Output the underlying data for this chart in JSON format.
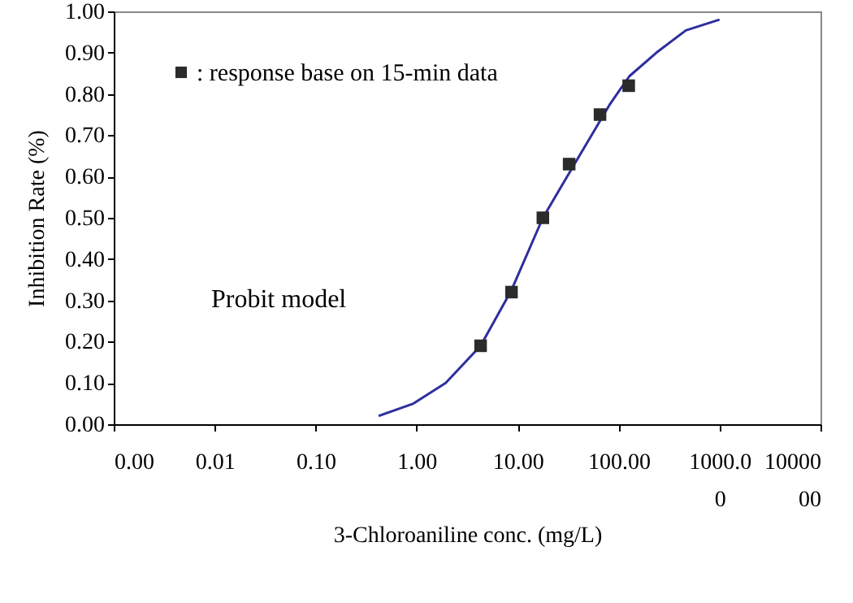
{
  "chart_data": {
    "type": "scatter",
    "xlabel": "3-Chloroaniline  conc. (mg/L)",
    "ylabel": "Inhibition Rate (%)",
    "log": "x",
    "xlim": [
      0.001,
      10000
    ],
    "xticks": [
      {
        "value": 0.001,
        "label": "0.00"
      },
      {
        "value": 0.01,
        "label": "0.01"
      },
      {
        "value": 0.1,
        "label": "0.10"
      },
      {
        "value": 1,
        "label": "1.00"
      },
      {
        "value": 10,
        "label": "10.00"
      },
      {
        "value": 100,
        "label": "100.00"
      },
      {
        "value": 1000,
        "label": "1000.0\n0"
      },
      {
        "value": 10000,
        "label": "10000\n00"
      }
    ],
    "ylim": [
      0,
      1
    ],
    "yticks": [
      {
        "value": 0,
        "label": "0.00"
      },
      {
        "value": 0.1,
        "label": "0.10"
      },
      {
        "value": 0.2,
        "label": "0.20"
      },
      {
        "value": 0.3,
        "label": "0.30"
      },
      {
        "value": 0.4,
        "label": "0.40"
      },
      {
        "value": 0.5,
        "label": "0.50"
      },
      {
        "value": 0.6,
        "label": "0.60"
      },
      {
        "value": 0.7,
        "label": "0.70"
      },
      {
        "value": 0.8,
        "label": "0.80"
      },
      {
        "value": 0.9,
        "label": "0.90"
      },
      {
        "value": 1,
        "label": "1.00"
      }
    ],
    "grid": false,
    "legend": "top left",
    "series": [
      {
        "type": "line",
        "color": "#2e2e9e",
        "marker": "none",
        "x": [
          0.42,
          0.93,
          1.94,
          4.3,
          8.7,
          17.8,
          40,
          83,
          128,
          237,
          464,
          1000
        ],
        "values": [
          0.02,
          0.05,
          0.1,
          0.19,
          0.325,
          0.5,
          0.646,
          0.777,
          0.843,
          0.9,
          0.954,
          0.98
        ]
      },
      {
        "name": ": response base on 15-min data",
        "color": "#2b2b2b",
        "marker": "square",
        "x": [
          4.3,
          8.7,
          17.8,
          32.4,
          65.5,
          126
        ],
        "values": [
          0.19,
          0.32,
          0.5,
          0.63,
          0.75,
          0.82
        ]
      }
    ],
    "annotations": [
      "Probit model"
    ]
  }
}
